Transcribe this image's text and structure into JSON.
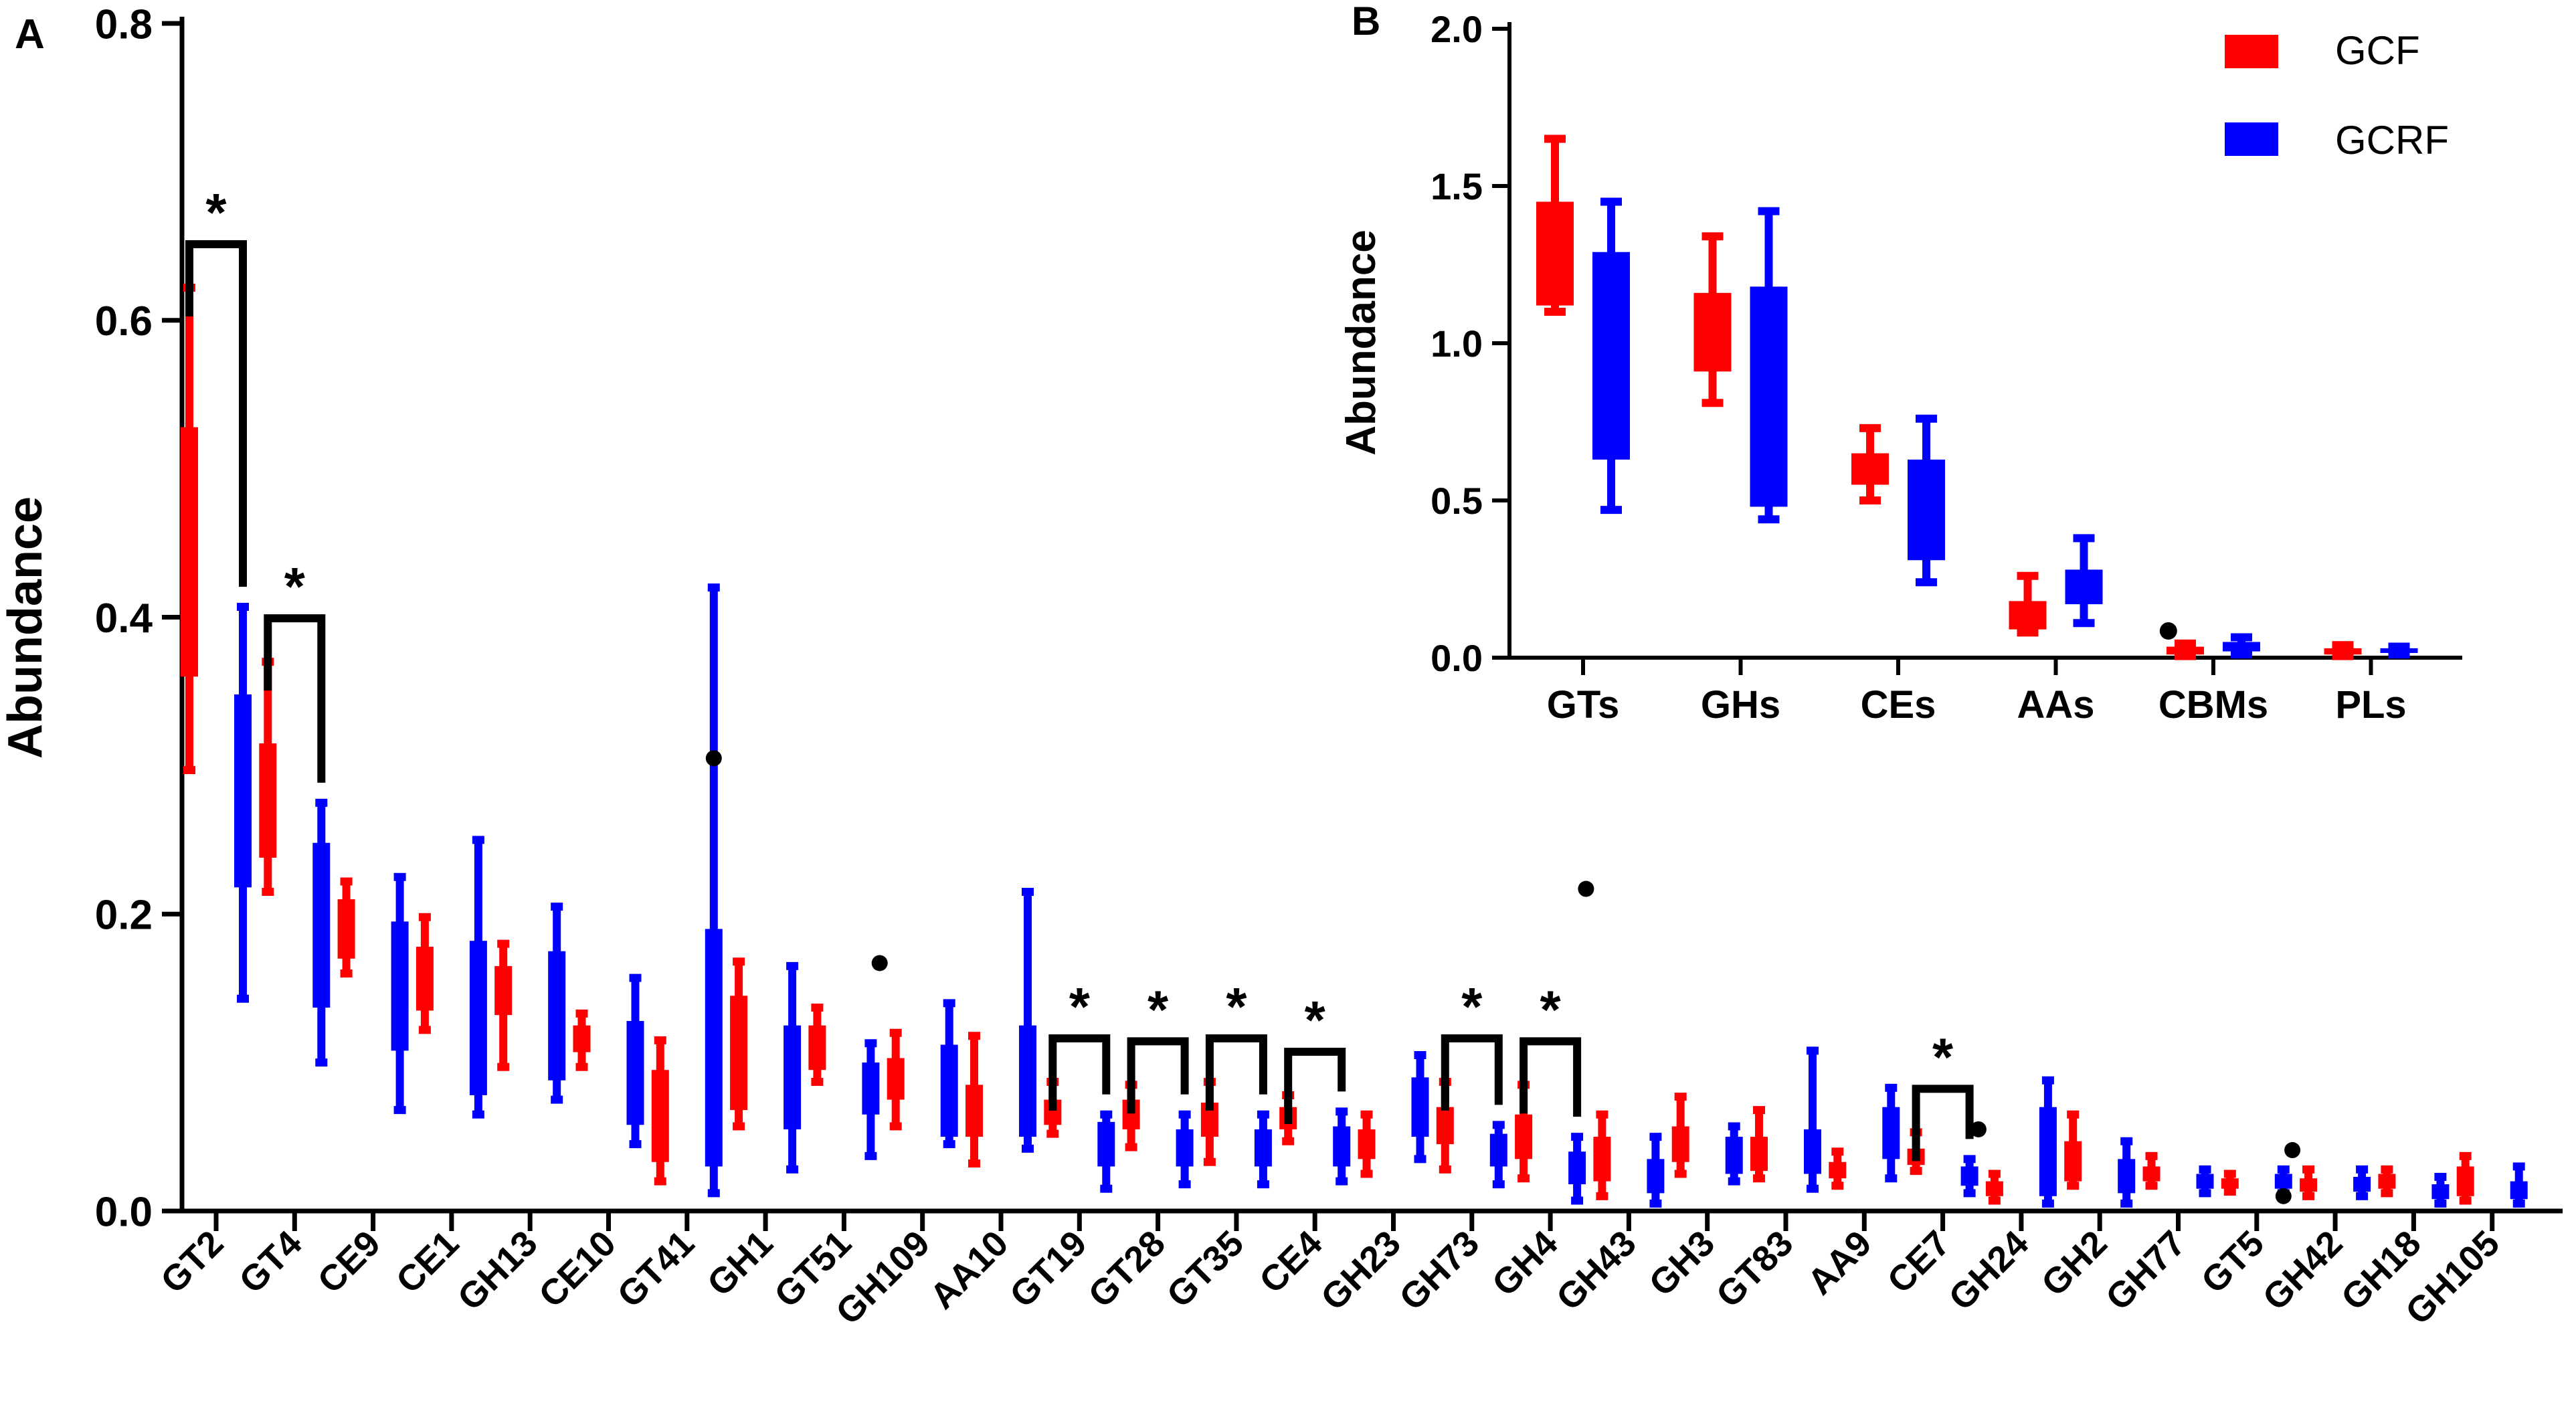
{
  "chart_data": [
    {
      "panel": "A",
      "type": "box",
      "ylabel": "Abundance",
      "ylim": [
        0,
        0.8
      ],
      "yticks": [
        "0.0",
        "0.2",
        "0.4",
        "0.6",
        "0.8"
      ],
      "ytick_values": [
        0,
        0.2,
        0.4,
        0.6,
        0.8
      ],
      "categories": [
        "GT2",
        "GT4",
        "CE9",
        "CE1",
        "GH13",
        "CE10",
        "GT41",
        "GH1",
        "GT51",
        "GH109",
        "AA10",
        "GT19",
        "GT28",
        "GT35",
        "CE4",
        "GH23",
        "GH73",
        "GH4",
        "GH43",
        "GH3",
        "GT83",
        "AA9",
        "CE7",
        "GH24",
        "GH2",
        "GH77",
        "GT5",
        "GH42",
        "GH18",
        "GH105"
      ],
      "significance_label": "*",
      "significant": [
        "GT2",
        "GT4",
        "GT19",
        "GT28",
        "GT35",
        "CE4",
        "GH73",
        "GH4",
        "CE7"
      ],
      "series": [
        {
          "name": "GCF",
          "color": "#ff0000",
          "boxes": [
            [
              0.297,
              0.36,
              0.45,
              0.528,
              0.622
            ],
            [
              0.215,
              0.238,
              0.275,
              0.315,
              0.37
            ],
            [
              0.16,
              0.17,
              0.19,
              0.21,
              0.222
            ],
            [
              0.122,
              0.135,
              0.155,
              0.178,
              0.198
            ],
            [
              0.097,
              0.132,
              0.148,
              0.165,
              0.18
            ],
            [
              0.097,
              0.107,
              0.117,
              0.125,
              0.133
            ],
            [
              0.02,
              0.033,
              0.055,
              0.095,
              0.115
            ],
            [
              0.057,
              0.068,
              0.1,
              0.145,
              0.168
            ],
            [
              0.087,
              0.095,
              0.105,
              0.125,
              0.137
            ],
            [
              0.057,
              0.075,
              0.088,
              0.103,
              0.12
            ],
            [
              0.032,
              0.05,
              0.065,
              0.085,
              0.118
            ],
            [
              0.052,
              0.058,
              0.068,
              0.075,
              0.087
            ],
            [
              0.043,
              0.055,
              0.065,
              0.075,
              0.085
            ],
            [
              0.033,
              0.05,
              0.062,
              0.073,
              0.087
            ],
            [
              0.047,
              0.055,
              0.062,
              0.07,
              0.078
            ],
            [
              0.025,
              0.035,
              0.045,
              0.055,
              0.065
            ],
            [
              0.028,
              0.045,
              0.058,
              0.07,
              0.087
            ],
            [
              0.022,
              0.035,
              0.05,
              0.065,
              0.085
            ],
            [
              0.01,
              0.02,
              0.035,
              0.05,
              0.065
            ],
            [
              0.025,
              0.033,
              0.045,
              0.057,
              0.077
            ],
            [
              0.022,
              0.027,
              0.037,
              0.05,
              0.068
            ],
            [
              0.017,
              0.022,
              0.028,
              0.033,
              0.04
            ],
            [
              0.027,
              0.031,
              0.037,
              0.042,
              0.053
            ],
            [
              0.007,
              0.01,
              0.015,
              0.02,
              0.025
            ],
            [
              0.017,
              0.02,
              0.027,
              0.047,
              0.065
            ],
            [
              0.017,
              0.02,
              0.025,
              0.03,
              0.037
            ],
            [
              0.013,
              0.015,
              0.019,
              0.022,
              0.025
            ],
            [
              0.01,
              0.013,
              0.017,
              0.022,
              0.028
            ],
            [
              0.012,
              0.015,
              0.019,
              0.025,
              0.028
            ],
            [
              0.007,
              0.01,
              0.018,
              0.03,
              0.037
            ]
          ],
          "outliers": [
            [],
            [],
            [],
            [],
            [],
            [],
            [],
            [],
            [],
            [
              0.167
            ],
            [],
            [],
            [],
            [],
            [],
            [],
            [],
            [],
            [
              0.217
            ],
            [],
            [],
            [],
            [],
            [
              0.055
            ],
            [],
            [],
            [],
            [
              0.041
            ],
            [],
            []
          ]
        },
        {
          "name": "GCRF",
          "color": "#0000ff",
          "boxes": [
            [
              0.143,
              0.218,
              0.285,
              0.348,
              0.407
            ],
            [
              0.1,
              0.137,
              0.195,
              0.248,
              0.275
            ],
            [
              0.068,
              0.108,
              0.15,
              0.195,
              0.225
            ],
            [
              0.065,
              0.078,
              0.13,
              0.182,
              0.25
            ],
            [
              0.075,
              0.088,
              0.13,
              0.175,
              0.205
            ],
            [
              0.045,
              0.058,
              0.095,
              0.128,
              0.157
            ],
            [
              0.012,
              0.03,
              0.12,
              0.19,
              0.42
            ],
            [
              0.028,
              0.055,
              0.09,
              0.125,
              0.165
            ],
            [
              0.037,
              0.065,
              0.085,
              0.1,
              0.113
            ],
            [
              0.045,
              0.05,
              0.08,
              0.112,
              0.14
            ],
            [
              0.042,
              0.05,
              0.085,
              0.125,
              0.215
            ],
            [
              0.015,
              0.03,
              0.045,
              0.06,
              0.065
            ],
            [
              0.018,
              0.03,
              0.045,
              0.055,
              0.065
            ],
            [
              0.018,
              0.03,
              0.045,
              0.055,
              0.065
            ],
            [
              0.02,
              0.03,
              0.045,
              0.057,
              0.067
            ],
            [
              0.035,
              0.05,
              0.07,
              0.09,
              0.105
            ],
            [
              0.018,
              0.03,
              0.042,
              0.052,
              0.058
            ],
            [
              0.007,
              0.018,
              0.03,
              0.04,
              0.05
            ],
            [
              0.005,
              0.012,
              0.022,
              0.035,
              0.05
            ],
            [
              0.02,
              0.025,
              0.037,
              0.05,
              0.057
            ],
            [
              0.015,
              0.025,
              0.04,
              0.055,
              0.108
            ],
            [
              0.022,
              0.035,
              0.055,
              0.07,
              0.083
            ],
            [
              0.012,
              0.017,
              0.025,
              0.03,
              0.035
            ],
            [
              0.005,
              0.01,
              0.04,
              0.07,
              0.088
            ],
            [
              0.005,
              0.012,
              0.025,
              0.035,
              0.047
            ],
            [
              0.012,
              0.015,
              0.02,
              0.025,
              0.028
            ],
            [
              0.012,
              0.015,
              0.02,
              0.025,
              0.028
            ],
            [
              0.01,
              0.013,
              0.018,
              0.023,
              0.028
            ],
            [
              0.005,
              0.008,
              0.013,
              0.018,
              0.023
            ],
            [
              0.005,
              0.008,
              0.014,
              0.02,
              0.03
            ]
          ],
          "outliers": [
            [],
            [],
            [],
            [],
            [],
            [],
            [
              0.305
            ],
            [],
            [],
            [],
            [],
            [],
            [],
            [],
            [],
            [],
            [],
            [],
            [],
            [],
            [],
            [],
            [],
            [],
            [],
            [],
            [
              0.01
            ],
            [],
            [],
            []
          ]
        }
      ]
    },
    {
      "panel": "B",
      "type": "box",
      "ylabel": "Abundance",
      "ylim": [
        0,
        2.0
      ],
      "yticks": [
        "0.0",
        "0.5",
        "1.0",
        "1.5",
        "2.0"
      ],
      "ytick_values": [
        0,
        0.5,
        1.0,
        1.5,
        2.0
      ],
      "categories": [
        "GTs",
        "GHs",
        "CEs",
        "AAs",
        "CBMs",
        "PLs"
      ],
      "legend": {
        "position": "top-right",
        "entries": [
          "GCF",
          "GCRF"
        ]
      },
      "series": [
        {
          "name": "GCF",
          "color": "#ff0000",
          "boxes": [
            [
              1.1,
              1.12,
              1.35,
              1.45,
              1.65
            ],
            [
              0.81,
              0.91,
              1.05,
              1.16,
              1.34
            ],
            [
              0.5,
              0.55,
              0.6,
              0.65,
              0.73
            ],
            [
              0.08,
              0.09,
              0.13,
              0.18,
              0.26
            ],
            [
              0.005,
              0.01,
              0.02,
              0.035,
              0.045
            ],
            [
              0.005,
              0.01,
              0.02,
              0.03,
              0.04
            ]
          ],
          "outliers": [
            [],
            [],
            [],
            [],
            [
              0.085
            ],
            []
          ]
        },
        {
          "name": "GCRF",
          "color": "#0000ff",
          "boxes": [
            [
              0.47,
              0.63,
              1.0,
              1.29,
              1.45
            ],
            [
              0.44,
              0.48,
              0.8,
              1.18,
              1.42
            ],
            [
              0.24,
              0.31,
              0.45,
              0.63,
              0.76
            ],
            [
              0.11,
              0.17,
              0.21,
              0.28,
              0.38
            ],
            [
              0.01,
              0.02,
              0.04,
              0.05,
              0.065
            ],
            [
              0.01,
              0.015,
              0.02,
              0.03,
              0.035
            ]
          ],
          "outliers": [
            [],
            [],
            [],
            [],
            [],
            []
          ]
        }
      ]
    }
  ],
  "panel_labels": {
    "a": "A",
    "b": "B"
  }
}
